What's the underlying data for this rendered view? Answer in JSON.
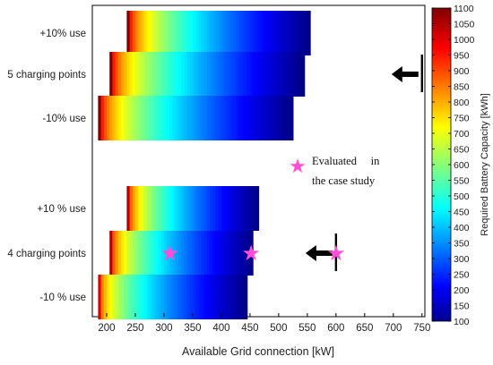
{
  "chart_data": {
    "type": "heatmap",
    "xlabel": "Available Grid connection [kW]",
    "xlim": [
      175,
      755
    ],
    "x_ticks": [
      "200",
      "250",
      "300",
      "350",
      "400",
      "450",
      "500",
      "550",
      "600",
      "650",
      "700",
      "750"
    ],
    "colorbar": {
      "label": "Required Battery Capacity [kWh]",
      "range": [
        100,
        1100
      ],
      "ticks": [
        "100",
        "150",
        "200",
        "250",
        "300",
        "350",
        "400",
        "450",
        "500",
        "550",
        "600",
        "650",
        "700",
        "750",
        "800",
        "850",
        "900",
        "950",
        "1000",
        "1050",
        "1100"
      ]
    },
    "rows": [
      {
        "label": "+10% use",
        "x_start": 235,
        "x_end": 555,
        "cap_start": 1100
      },
      {
        "label": "5 charging points",
        "x_start": 205,
        "x_end": 545,
        "cap_start": 1100
      },
      {
        "label": "-10% use",
        "x_start": 185,
        "x_end": 525,
        "cap_start": 1100
      },
      {
        "label": "+10 % use",
        "x_start": 235,
        "x_end": 465,
        "cap_start": 1050
      },
      {
        "label": "4 charging points",
        "x_start": 205,
        "x_end": 455,
        "cap_start": 1050
      },
      {
        "label": "-10 % use",
        "x_start": 185,
        "x_end": 445,
        "cap_start": 1000
      }
    ],
    "evaluated_points": [
      {
        "row": "4 charging points",
        "x": 310
      },
      {
        "row": "4 charging points",
        "x": 452
      },
      {
        "row": "4 charging points",
        "x": 600
      }
    ],
    "limits": [
      {
        "row": "5 charging points",
        "x": 750,
        "arrow": "left"
      },
      {
        "row": "4 charging points",
        "x": 600,
        "arrow": "left"
      }
    ],
    "legend": {
      "symbol": "★",
      "text_line1": "Evaluated     in",
      "text_line2": "the case study"
    },
    "colors": {
      "marker": "#ff4fd8"
    }
  }
}
